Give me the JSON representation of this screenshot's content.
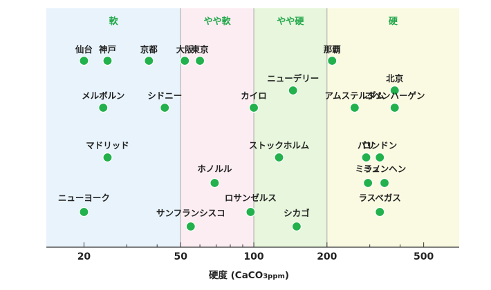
{
  "chart_data": {
    "type": "scatter",
    "scale": "log",
    "xlim": [
      14,
      700
    ],
    "xlabel": "硬度 (CaCO",
    "xlabel_sub": "3ppm",
    "xlabel_tail": ")",
    "ticks": [
      {
        "value": 20,
        "label": "20"
      },
      {
        "value": 50,
        "label": "50"
      },
      {
        "value": 100,
        "label": "100"
      },
      {
        "value": 200,
        "label": "200"
      },
      {
        "value": 500,
        "label": "500"
      }
    ],
    "minor_ticks": [
      30,
      40,
      60,
      70,
      80,
      90,
      300,
      400
    ],
    "bands": [
      {
        "name": "軟",
        "from": 14,
        "to": 50,
        "color": "#e8f3fb"
      },
      {
        "name": "やや軟",
        "from": 50,
        "to": 100,
        "color": "#fcedf2"
      },
      {
        "name": "やや硬",
        "from": 100,
        "to": 200,
        "color": "#e7f6dc"
      },
      {
        "name": "硬",
        "from": 200,
        "to": 700,
        "color": "#fafae2"
      }
    ],
    "points": [
      {
        "name": "仙台",
        "x": 20,
        "row": 1
      },
      {
        "name": "神戸",
        "x": 25,
        "row": 1
      },
      {
        "name": "京都",
        "x": 37,
        "row": 1
      },
      {
        "name": "大阪",
        "x": 52,
        "row": 1
      },
      {
        "name": "東京",
        "x": 60,
        "row": 1
      },
      {
        "name": "那覇",
        "x": 210,
        "row": 1
      },
      {
        "name": "ニューデリー",
        "x": 145,
        "row": 2
      },
      {
        "name": "北京",
        "x": 380,
        "row": 2
      },
      {
        "name": "メルボルン",
        "x": 24,
        "row": 3
      },
      {
        "name": "シドニー",
        "x": 43,
        "row": 3
      },
      {
        "name": "カイロ",
        "x": 100,
        "row": 3
      },
      {
        "name": "アムステルダム",
        "x": 260,
        "row": 3
      },
      {
        "name": "コペンハーゲン",
        "x": 380,
        "row": 3
      },
      {
        "name": "マドリッド",
        "x": 25,
        "row": 4
      },
      {
        "name": "ストックホルム",
        "x": 127,
        "row": 4
      },
      {
        "name": "パリ",
        "x": 290,
        "row": 4
      },
      {
        "name": "ロンドン",
        "x": 330,
        "row": 4
      },
      {
        "name": "ホノルル",
        "x": 69,
        "row": 5
      },
      {
        "name": "ミラノ",
        "x": 295,
        "row": 5
      },
      {
        "name": "ミュンヘン",
        "x": 345,
        "row": 5
      },
      {
        "name": "ニューヨーク",
        "x": 20,
        "row": 6
      },
      {
        "name": "ロサンゼルス",
        "x": 97,
        "row": 6
      },
      {
        "name": "ラスベガス",
        "x": 330,
        "row": 6
      },
      {
        "name": "サンフランシスコ",
        "x": 55,
        "row": 7
      },
      {
        "name": "シカゴ",
        "x": 150,
        "row": 7
      }
    ],
    "colors": {
      "point": "#22b14c",
      "point_border": "#ffffff",
      "axis": "#333333",
      "band_label": "#22a84a",
      "band_border": "#aaaaaa"
    }
  }
}
